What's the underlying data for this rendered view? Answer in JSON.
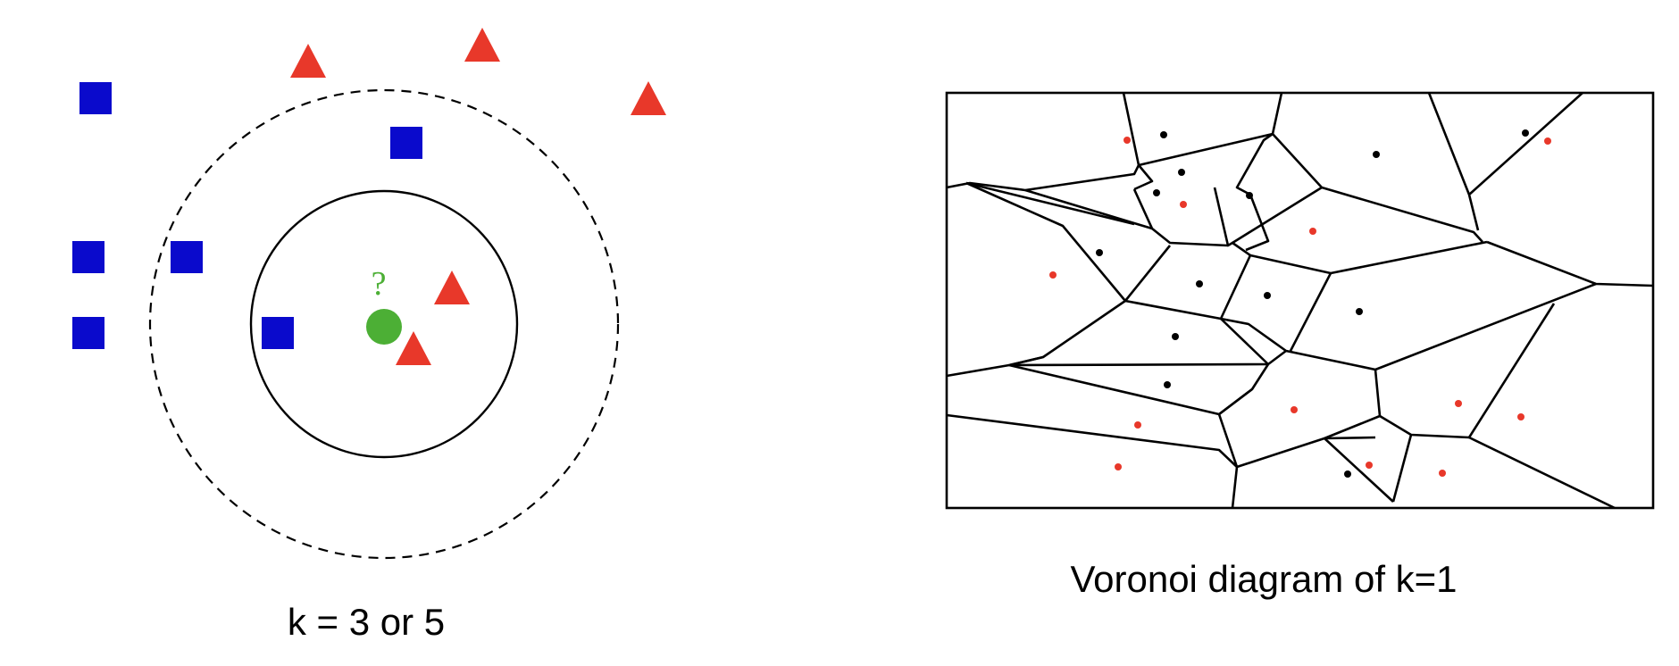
{
  "knn_panel": {
    "caption": "k = 3 or 5",
    "query_symbol": "?",
    "colors": {
      "class_square": "#0A0ACC",
      "class_triangle": "#E8382A",
      "query_point": "#4CAF35",
      "neighborhood_outline": "#000000"
    },
    "shapes": {
      "class_square": "square",
      "class_triangle": "triangle",
      "query_point": "circle"
    },
    "neighborhoods": [
      {
        "name": "inner-neighborhood-circle",
        "k": 3,
        "style": "solid"
      },
      {
        "name": "outer-neighborhood-circle",
        "k": 5,
        "style": "dashed"
      }
    ]
  },
  "voronoi_panel": {
    "caption": "Voronoi diagram of k=1",
    "colors": {
      "class_black": "#000000",
      "class_red": "#E8382A",
      "cell_edge": "#000000"
    }
  }
}
